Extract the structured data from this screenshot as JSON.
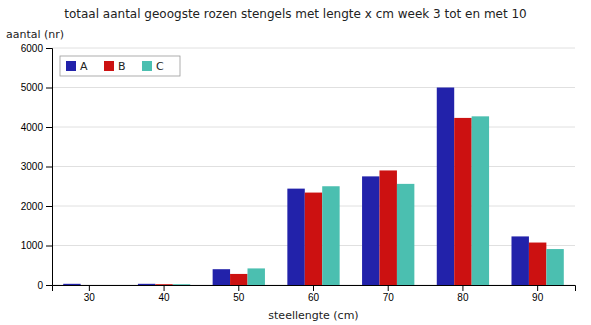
{
  "chart_data": {
    "type": "bar",
    "title": "totaal aantal geoogste rozen stengels met lengte x cm week 3 tot en met 10",
    "xlabel": "steellengte (cm)",
    "ylabel": "aantal (nr)",
    "categories": [
      30,
      40,
      50,
      60,
      70,
      80,
      90
    ],
    "series": [
      {
        "name": "A",
        "color": "#2222aa",
        "values": [
          30,
          30,
          400,
          2440,
          2750,
          5000,
          1230
        ]
      },
      {
        "name": "B",
        "color": "#cc1111",
        "values": [
          0,
          20,
          280,
          2340,
          2900,
          4230,
          1075
        ]
      },
      {
        "name": "C",
        "color": "#4bbfb0",
        "values": [
          0,
          20,
          420,
          2500,
          2560,
          4270,
          910
        ]
      }
    ],
    "ylim": [
      0,
      6000
    ],
    "yticks": [
      0,
      1000,
      2000,
      3000,
      4000,
      5000,
      6000
    ],
    "grid": true,
    "legend": "upper left"
  }
}
